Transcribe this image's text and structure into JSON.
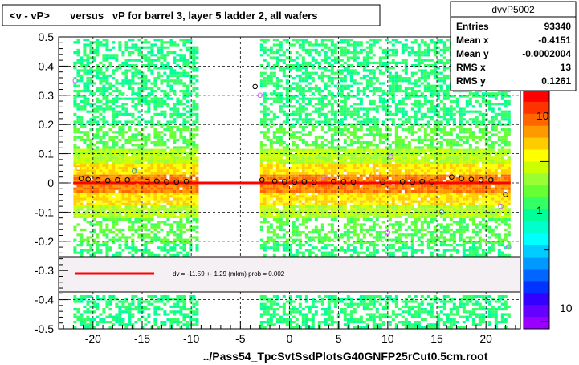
{
  "title": "<v - vP>       versus   vP for barrel 3, layer 5 ladder 2, all wafers",
  "stats": {
    "name": "dvvP5002",
    "rows": [
      {
        "label": "Entries",
        "value": "93340"
      },
      {
        "label": "Mean x",
        "value": "-0.4151"
      },
      {
        "label": "Mean y",
        "value": "-0.0002004"
      },
      {
        "label": "RMS x",
        "value": "13"
      },
      {
        "label": "RMS y",
        "value": "0.1261"
      }
    ]
  },
  "fit_legend": "dv =  -11.59 +- 1.29 (mkm) prob = 0.002",
  "footer": "../Pass54_TpcSvtSsdPlotsG40GNFP25rCut0.5cm.root",
  "palette": {
    "labels": [
      "10",
      "1",
      "10"
    ],
    "colors": [
      "#ff0000",
      "#ff3300",
      "#ff6600",
      "#ff9900",
      "#ffcc00",
      "#ffff00",
      "#ccff00",
      "#99ff33",
      "#66ff33",
      "#33ff66",
      "#00ff99",
      "#00ffcc",
      "#00ffff",
      "#00ccff",
      "#0099ff",
      "#0066ff",
      "#0033ff",
      "#3300ff",
      "#6600ff",
      "#9900ff"
    ]
  },
  "colors": {
    "fit_line": "#ff0000",
    "legend_box": "#f4f0f4",
    "frame": "#000000"
  },
  "chart_data": {
    "type": "heatmap",
    "xlim": [
      -23.5,
      23.5
    ],
    "ylim": [
      -0.5,
      0.5
    ],
    "x_ticks": [
      -20,
      -15,
      -10,
      -5,
      0,
      5,
      10,
      15,
      20
    ],
    "x_tick_labels": [
      "-20",
      "-15",
      "-10",
      "-5",
      "0",
      "5",
      "10",
      "15",
      "20"
    ],
    "y_ticks": [
      -0.5,
      -0.4,
      -0.3,
      -0.2,
      -0.1,
      0,
      0.1,
      0.2,
      0.3,
      0.4,
      0.5
    ],
    "y_tick_labels": [
      "-0.5",
      "-0.4",
      "-0.3",
      "-0.2",
      "-0.1",
      "0",
      "0.1",
      "0.2",
      "0.3",
      "0.4",
      "0.5"
    ],
    "grid": "dashed",
    "occupied_x_ranges": [
      [
        -22,
        -9.5
      ],
      [
        -3,
        22.5
      ]
    ],
    "dense_core_y": [
      -0.12,
      0.12
    ],
    "fit": {
      "type": "constant",
      "y": 0.0
    },
    "profile_points": [
      {
        "x": -21.8,
        "y": 0.35,
        "color": "violet"
      },
      {
        "x": -21.5,
        "y": 0.05,
        "color": "orange"
      },
      {
        "x": -21.2,
        "y": 0.015,
        "color": "black"
      },
      {
        "x": -20.5,
        "y": 0.012,
        "color": "black"
      },
      {
        "x": -19.5,
        "y": 0.01,
        "color": "black"
      },
      {
        "x": -18.5,
        "y": 0.008,
        "color": "black"
      },
      {
        "x": -17.5,
        "y": 0.01,
        "color": "black"
      },
      {
        "x": -16.5,
        "y": 0.01,
        "color": "black"
      },
      {
        "x": -15.8,
        "y": 0.04,
        "color": "teal"
      },
      {
        "x": -15.5,
        "y": -0.01,
        "color": "orange"
      },
      {
        "x": -14.5,
        "y": 0.005,
        "color": "black"
      },
      {
        "x": -13.5,
        "y": 0.006,
        "color": "black"
      },
      {
        "x": -12.5,
        "y": 0.004,
        "color": "black"
      },
      {
        "x": -11.5,
        "y": 0.003,
        "color": "black"
      },
      {
        "x": -10.5,
        "y": 0.005,
        "color": "black"
      },
      {
        "x": -9.9,
        "y": -0.03,
        "color": "orange"
      },
      {
        "x": -3.5,
        "y": 0.33,
        "color": "black"
      },
      {
        "x": -3.0,
        "y": 0.3,
        "color": "violet"
      },
      {
        "x": -2.8,
        "y": 0.01,
        "color": "black"
      },
      {
        "x": -1.5,
        "y": 0.006,
        "color": "black"
      },
      {
        "x": -0.5,
        "y": 0.004,
        "color": "black"
      },
      {
        "x": 0.5,
        "y": 0.003,
        "color": "black"
      },
      {
        "x": 1.5,
        "y": 0.004,
        "color": "black"
      },
      {
        "x": 2.5,
        "y": 0.002,
        "color": "black"
      },
      {
        "x": 3.5,
        "y": 0.02,
        "color": "violet"
      },
      {
        "x": 4.5,
        "y": 0.005,
        "color": "black"
      },
      {
        "x": 5.5,
        "y": 0.004,
        "color": "black"
      },
      {
        "x": 6.5,
        "y": 0.003,
        "color": "black"
      },
      {
        "x": 7.5,
        "y": -0.02,
        "color": "orange"
      },
      {
        "x": 8.5,
        "y": 0.03,
        "color": "orange"
      },
      {
        "x": 9.5,
        "y": 0.003,
        "color": "black"
      },
      {
        "x": 10.0,
        "y": -0.17,
        "color": "violet"
      },
      {
        "x": 10.3,
        "y": 0.09,
        "color": "violet"
      },
      {
        "x": 11.5,
        "y": 0.004,
        "color": "black"
      },
      {
        "x": 12.5,
        "y": 0.003,
        "color": "black"
      },
      {
        "x": 13.5,
        "y": 0.005,
        "color": "black"
      },
      {
        "x": 14.5,
        "y": 0.004,
        "color": "black"
      },
      {
        "x": 15.5,
        "y": -0.1,
        "color": "teal"
      },
      {
        "x": 15.8,
        "y": -0.03,
        "color": "orange"
      },
      {
        "x": 16.5,
        "y": 0.02,
        "color": "black"
      },
      {
        "x": 17.5,
        "y": 0.015,
        "color": "black"
      },
      {
        "x": 18.5,
        "y": 0.012,
        "color": "black"
      },
      {
        "x": 19.5,
        "y": 0.01,
        "color": "black"
      },
      {
        "x": 20.5,
        "y": 0.01,
        "color": "black"
      },
      {
        "x": 21.5,
        "y": -0.08,
        "color": "violet"
      },
      {
        "x": 22.0,
        "y": -0.04,
        "color": "black"
      },
      {
        "x": 22.3,
        "y": -0.22,
        "color": "violet"
      }
    ]
  }
}
